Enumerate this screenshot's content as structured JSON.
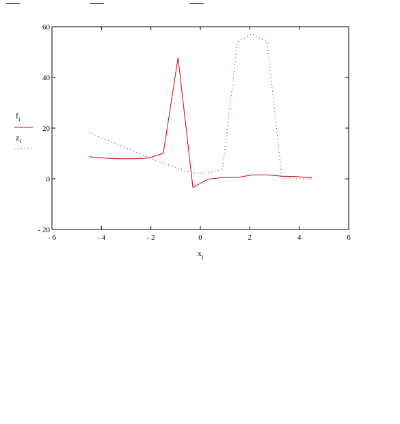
{
  "chart_data": {
    "type": "line",
    "xlabel": "x",
    "xlabel_sub": "i",
    "xlim": [
      -6,
      6
    ],
    "ylim": [
      -20,
      60
    ],
    "xticks": [
      -6,
      -4,
      -2,
      0,
      2,
      4,
      6
    ],
    "yticks": [
      -20,
      0,
      20,
      40,
      60
    ],
    "xtick_labels": [
      "- 6",
      "- 4",
      "- 2",
      "0",
      "2",
      "4",
      "6"
    ],
    "ytick_labels": [
      "- 20",
      "0",
      "20",
      "40",
      "60"
    ],
    "grid": false,
    "legend_position": "left",
    "series": [
      {
        "name": "f",
        "name_sub": "i",
        "color": "#cc0000",
        "style": "solid",
        "x": [
          -4.5,
          -3.9,
          -3.3,
          -2.7,
          -2.1,
          -1.5,
          -0.9,
          -0.3,
          0.3,
          0.9,
          1.5,
          2.1,
          2.7,
          3.3,
          3.9,
          4.5
        ],
        "y": [
          8.7,
          8.2,
          7.9,
          7.9,
          8.2,
          10,
          47.8,
          -3.4,
          -0.2,
          0.5,
          0.5,
          1.5,
          1.5,
          1,
          0.9,
          0.3
        ]
      },
      {
        "name": "z",
        "name_sub": "i",
        "color": "#0000cc",
        "style": "dotted",
        "x": [
          -4.5,
          -3.9,
          -3.3,
          -2.7,
          -2.1,
          -1.5,
          -0.9,
          -0.3,
          0.3,
          0.9,
          1.5,
          2.1,
          2.7,
          3.3,
          3.9,
          4.5
        ],
        "y": [
          18.2,
          15.8,
          13.4,
          11,
          8.4,
          6.2,
          4.2,
          2.2,
          2.2,
          4,
          54,
          57.2,
          54,
          0,
          0,
          0
        ]
      }
    ]
  }
}
